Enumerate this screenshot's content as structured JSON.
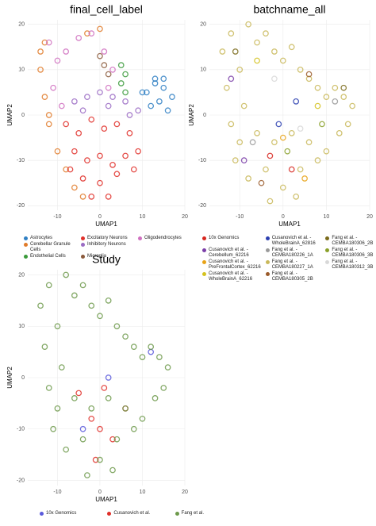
{
  "chart_data": [
    {
      "type": "scatter",
      "title": "final_cell_label",
      "x_label": "UMAP1",
      "y_label": "UMAP2",
      "xlim": [
        -17,
        20
      ],
      "ylim": [
        -21,
        21
      ],
      "xticks": [
        -10,
        0,
        10,
        20
      ],
      "yticks": [
        -20,
        -10,
        0,
        10,
        20
      ],
      "grid": true,
      "legend": "bottom",
      "series": [
        {
          "name": "Astrocytes",
          "color": "#2f7fc3",
          "x": [
            11,
            13,
            15,
            17,
            12,
            14,
            16,
            10,
            13,
            15
          ],
          "y": [
            5,
            7,
            6,
            4,
            2,
            3,
            1,
            5,
            8,
            8
          ]
        },
        {
          "name": "Cerebellar Granule Cells",
          "color": "#e07b2a",
          "x": [
            -14,
            -13,
            -12,
            -10,
            -8,
            -6,
            -4,
            -14,
            -13,
            -12,
            -3,
            0
          ],
          "y": [
            10,
            4,
            -2,
            -8,
            -12,
            -16,
            -18,
            14,
            16,
            0,
            18,
            19
          ]
        },
        {
          "name": "Endothelial Cells",
          "color": "#3a9a3a",
          "x": [
            5,
            6,
            5,
            6
          ],
          "y": [
            11,
            9,
            7,
            5
          ]
        },
        {
          "name": "Excitatory Neurons",
          "color": "#e0302a",
          "x": [
            -8,
            -5,
            -2,
            1,
            4,
            7,
            9,
            -6,
            -3,
            0,
            3,
            6,
            -4,
            0,
            4,
            -2,
            2,
            -7,
            8
          ],
          "y": [
            -2,
            -4,
            -1,
            -3,
            -2,
            -4,
            -8,
            -8,
            -10,
            -9,
            -11,
            -9,
            -14,
            -15,
            -13,
            -18,
            -18,
            -12,
            -12
          ]
        },
        {
          "name": "Inhibitory Neurons",
          "color": "#9b6cc4",
          "x": [
            -6,
            -3,
            0,
            3,
            6,
            9,
            -4,
            2,
            7
          ],
          "y": [
            3,
            4,
            5,
            4,
            3,
            1,
            1,
            2,
            0
          ]
        },
        {
          "name": "Microglia",
          "color": "#8b5a3c",
          "x": [
            1,
            2,
            0
          ],
          "y": [
            11,
            9,
            13
          ]
        },
        {
          "name": "Oligodendrocytes",
          "color": "#d070c0",
          "x": [
            -12,
            -10,
            -11,
            -8,
            -5,
            -2,
            1,
            3,
            -9,
            2
          ],
          "y": [
            16,
            12,
            6,
            14,
            17,
            18,
            14,
            10,
            2,
            6
          ]
        }
      ]
    },
    {
      "type": "scatter",
      "title": "batchname_all",
      "x_label": "UMAP1",
      "y_label": "UMAP2",
      "xlim": [
        -17,
        20
      ],
      "ylim": [
        -21,
        21
      ],
      "xticks": [
        -10,
        0,
        10,
        20
      ],
      "yticks": [
        -20,
        -10,
        0,
        10,
        20
      ],
      "grid": true,
      "legend": "bottom",
      "series": [
        {
          "name": "10x Genomics",
          "color": "#d7261e",
          "x": [
            -3,
            2
          ],
          "y": [
            -9,
            -12
          ]
        },
        {
          "name": "Cusanovich et al. - Cerebellum_62216",
          "color": "#7b3fa8",
          "x": [
            -12,
            -9
          ],
          "y": [
            8,
            -10
          ]
        },
        {
          "name": "Cusanovich et al. - PreFrontalCortex_62216",
          "color": "#e8a317",
          "x": [
            0,
            5
          ],
          "y": [
            -5,
            -14
          ]
        },
        {
          "name": "Cusanovich et al. - WholeBrainA_62216",
          "color": "#d4c21f",
          "x": [
            8,
            -6
          ],
          "y": [
            2,
            12
          ]
        },
        {
          "name": "Cusanovich et al. - WholeBrainA_62816",
          "color": "#2c3fb0",
          "x": [
            3,
            -1
          ],
          "y": [
            3,
            -2
          ]
        },
        {
          "name": "Fang et al. - CEMBA180226_1A",
          "color": "#9a9a9a",
          "x": [
            12,
            -7
          ],
          "y": [
            3,
            -6
          ]
        },
        {
          "name": "Fang et al. - CEMBA180227_1A",
          "color": "#c9b85a",
          "x": [
            -14,
            -13,
            -12,
            -11,
            -10,
            -9,
            -8,
            -6,
            -4,
            -2,
            0,
            2,
            4,
            6,
            8,
            10,
            12,
            14,
            16,
            -6,
            -2,
            2,
            6,
            10,
            -4,
            0,
            4,
            8,
            -10,
            -12,
            -8,
            -3,
            3,
            15,
            13
          ],
          "y": [
            14,
            6,
            -2,
            -10,
            10,
            2,
            -14,
            16,
            18,
            14,
            12,
            15,
            10,
            8,
            6,
            4,
            6,
            4,
            2,
            -4,
            -6,
            -4,
            -6,
            -8,
            -12,
            -16,
            -12,
            -10,
            -6,
            18,
            20,
            -19,
            -18,
            -2,
            -4
          ]
        },
        {
          "name": "Fang et al. - CEMBA180305_2B",
          "color": "#9a5a2a",
          "x": [
            -5,
            6
          ],
          "y": [
            -15,
            9
          ]
        },
        {
          "name": "Fang et al. - CEMBA180306_2B",
          "color": "#7a6a1a",
          "x": [
            -11,
            14
          ],
          "y": [
            14,
            6
          ]
        },
        {
          "name": "Fang et al. - CEMBA180306_3B",
          "color": "#8aa02a",
          "x": [
            1,
            9
          ],
          "y": [
            -8,
            -2
          ]
        },
        {
          "name": "Fang et al. - CEMBA180312_3B",
          "color": "#d8d8d8",
          "x": [
            -2,
            4
          ],
          "y": [
            8,
            -3
          ]
        }
      ]
    },
    {
      "type": "scatter",
      "title": "Study",
      "x_label": "UMAP1",
      "y_label": "UMAP2",
      "xlim": [
        -17,
        20
      ],
      "ylim": [
        -21,
        21
      ],
      "xticks": [
        -10,
        0,
        10,
        20
      ],
      "yticks": [
        -20,
        -10,
        0,
        10,
        20
      ],
      "grid": true,
      "legend": "bottom",
      "series": [
        {
          "name": "10x Genomics",
          "color": "#5a5adc",
          "x": [
            -4,
            2,
            12
          ],
          "y": [
            -10,
            0,
            5
          ]
        },
        {
          "name": "Cusanovich et al.",
          "color": "#e0302a",
          "x": [
            -2,
            0,
            3,
            -5,
            6,
            1,
            -1
          ],
          "y": [
            -8,
            -10,
            -12,
            -3,
            -6,
            -2,
            -16
          ]
        },
        {
          "name": "Fang et al.",
          "color": "#6e9a4c",
          "x": [
            -14,
            -13,
            -12,
            -11,
            -10,
            -9,
            -8,
            -6,
            -4,
            -2,
            0,
            2,
            4,
            6,
            8,
            10,
            12,
            14,
            16,
            -6,
            -2,
            2,
            6,
            10,
            -4,
            0,
            4,
            8,
            -10,
            -12,
            -8,
            -3,
            3,
            15,
            13
          ],
          "y": [
            14,
            6,
            -2,
            -10,
            10,
            2,
            -14,
            16,
            18,
            14,
            12,
            15,
            10,
            8,
            6,
            4,
            6,
            4,
            2,
            -4,
            -6,
            -4,
            -6,
            -8,
            -12,
            -16,
            -12,
            -10,
            -6,
            18,
            20,
            -19,
            -18,
            -2,
            -4
          ]
        }
      ]
    }
  ]
}
